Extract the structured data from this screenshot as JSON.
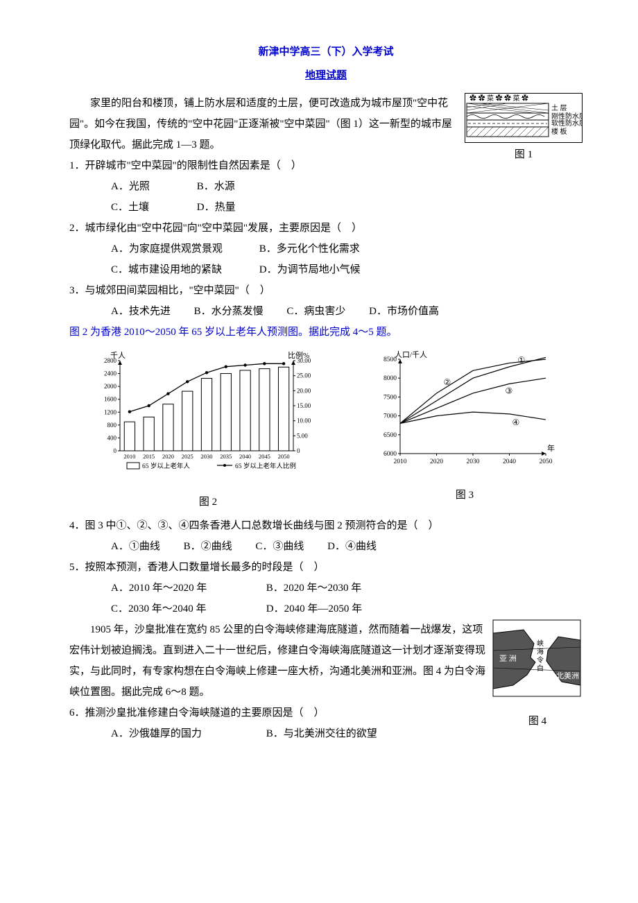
{
  "header": {
    "title": "新津中学高三（下）入学考试",
    "subtitle": "地理试题"
  },
  "intro1": {
    "p1": "家里的阳台和楼顶，铺上防水层和适度的土层，便可改造成为城市屋顶\"空中花园\"。如今在我国，传统的\"空中花园\"正逐渐被\"空中菜园\"（图 1）这一新型的城市屋顶绿化取代。据此完成 1—3 题。"
  },
  "q1": {
    "stem": "1．开辟城市\"空中菜园\"的限制性自然因素是（　）",
    "a": "A．光照",
    "b": "B．水源",
    "c": "C．土壤",
    "d": "D．热量"
  },
  "q2": {
    "stem": "2．城市绿化由\"空中花园\"向\"空中菜园\"发展，主要原因是（　）",
    "a": "A．为家庭提供观赏景观",
    "b": "B．多元化个性化需求",
    "c": "C．城市建设用地的紧缺",
    "d": "D．为调节局地小气候"
  },
  "q3": {
    "stem": "3．与城郊田间菜园相比，\"空中菜园\"（　）",
    "a": "A．技术先进",
    "b": "B．水分蒸发慢",
    "c": "C．病虫害少",
    "d": "D．市场价值高"
  },
  "intro2": "图 2 为香港 2010～2050 年 65 岁以上老年人预测图。据此完成 4～5 题。",
  "fig1": {
    "label": "图 1",
    "layers": [
      "土 层",
      "刚性防水层",
      "软性防水层",
      "楼 板"
    ]
  },
  "fig2": {
    "label": "图 2",
    "y_label": "千人",
    "y2_label": "比例%",
    "y_ticks": [
      0,
      400,
      800,
      1200,
      1600,
      2000,
      2400,
      2800
    ],
    "y2_ticks": [
      0,
      "5.00",
      "10.00",
      "15.00",
      "20.00",
      "25.00",
      "30.00"
    ],
    "x_ticks": [
      "2010",
      "2015",
      "2020",
      "2025",
      "2030",
      "2035",
      "2040",
      "2045",
      "2050"
    ],
    "bars": [
      900,
      1050,
      1450,
      1850,
      2250,
      2400,
      2500,
      2550,
      2600
    ],
    "line": [
      13,
      15,
      19,
      23,
      26,
      28,
      28.5,
      29,
      29
    ],
    "legend_bar": "65 岁以上老年人",
    "legend_line": "65 岁以上老年人比例"
  },
  "fig3": {
    "label": "图 3",
    "y_label": "人口/千人",
    "x_label": "年",
    "y_ticks": [
      6000,
      6500,
      7000,
      7500,
      8000,
      8500
    ],
    "x_ticks": [
      "2010",
      "2020",
      "2030",
      "2040",
      "2050"
    ],
    "curves": {
      "c1": [
        6800,
        7400,
        8000,
        8300,
        8550
      ],
      "c2": [
        6800,
        7600,
        8200,
        8400,
        8500
      ],
      "c3": [
        6800,
        7200,
        7600,
        7850,
        8000
      ],
      "c4": [
        6800,
        7000,
        7100,
        7050,
        6900
      ]
    },
    "labels": [
      "①",
      "②",
      "③",
      "④"
    ]
  },
  "q4": {
    "stem": "4．图 3 中①、②、③、④四条香港人口总数增长曲线与图 2 预测符合的是（　）",
    "a": "A．①曲线",
    "b": "B．②曲线",
    "c": "C．③曲线",
    "d": "D．④曲线"
  },
  "q5": {
    "stem": "5．按照本预测，香港人口数量增长最多的时段是（　）",
    "a": "A．2010 年～2020 年",
    "b": "B．2020 年～2030 年",
    "c": "C．2030 年～2040 年",
    "d": "D．2040 年—2050 年"
  },
  "intro3": "1905 年，沙皇批准在宽约 85 公里的白令海峡修建海底隧道，然而随着一战爆发，这项宏伟计划被迫搁浅。直到进入二十一世纪后，修建白令海峡海底隧道这一计划才逐渐变得现实，与此同时，有专家构想在白令海峡上修建一座大桥，沟通北美洲和亚洲。图 4 为白令海峡位置图。据此完成 6～8 题。",
  "fig4": {
    "label": "图 4",
    "labels": [
      "亚 洲",
      "北美洲",
      "峡海令白"
    ]
  },
  "q6": {
    "stem": "6．推测沙皇批准修建白令海峡隧道的主要原因是（　）",
    "a": "A．沙俄雄厚的国力",
    "b": "B．与北美洲交往的欲望"
  },
  "colors": {
    "title": "#0000cc",
    "text": "#000000",
    "bg": "#ffffff",
    "chart_stroke": "#000000"
  }
}
